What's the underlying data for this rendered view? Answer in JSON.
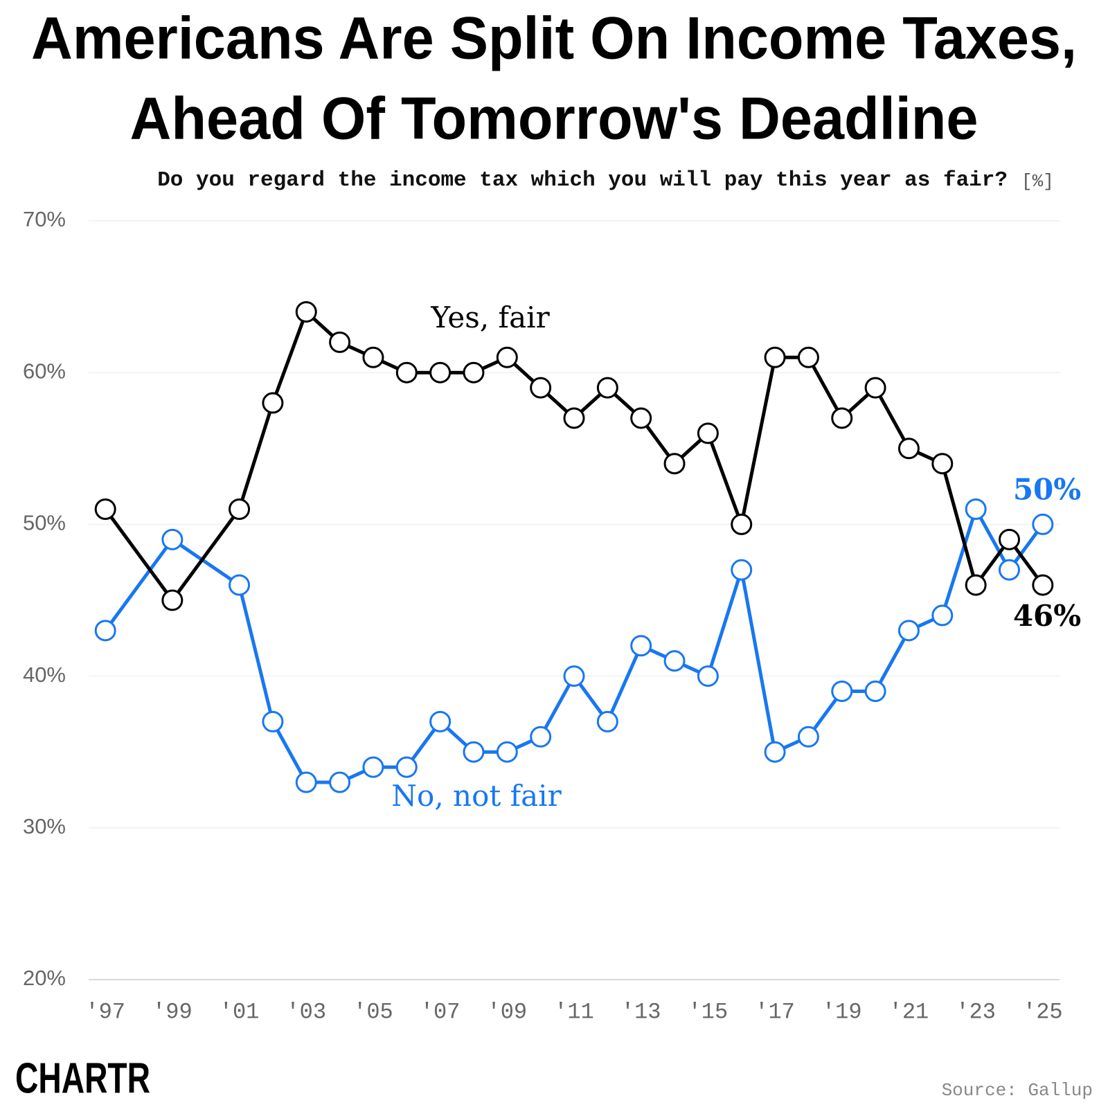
{
  "chart_data": {
    "type": "line",
    "title": [
      "Americans Are Split On Income Taxes,",
      "Ahead Of Tomorrow's Deadline"
    ],
    "subtitle": "Do you regard the income tax which you will pay this year as fair?",
    "unit": "[%]",
    "x": [
      1997,
      1999,
      2001,
      2002,
      2003,
      2004,
      2005,
      2006,
      2007,
      2008,
      2009,
      2010,
      2011,
      2012,
      2013,
      2014,
      2015,
      2016,
      2017,
      2018,
      2019,
      2020,
      2021,
      2022,
      2023,
      2024,
      2025
    ],
    "series": [
      {
        "name": "Yes, fair",
        "color": "#000000",
        "values": [
          51,
          45,
          51,
          58,
          64,
          62,
          61,
          60,
          60,
          60,
          61,
          59,
          57,
          59,
          57,
          54,
          56,
          50,
          61,
          61,
          57,
          59,
          55,
          54,
          46,
          49,
          46
        ],
        "value_labels": [
          null,
          null,
          null,
          null,
          null,
          null,
          null,
          null,
          null,
          null,
          null,
          null,
          null,
          null,
          null,
          null,
          null,
          null,
          null,
          null,
          null,
          null,
          null,
          null,
          null,
          null,
          "46%"
        ]
      },
      {
        "name": "No, not fair",
        "color": "#1877f2",
        "values": [
          43,
          49,
          46,
          37,
          33,
          33,
          34,
          34,
          37,
          35,
          35,
          36,
          40,
          37,
          42,
          41,
          40,
          47,
          35,
          36,
          39,
          39,
          43,
          44,
          51,
          47,
          50
        ],
        "value_labels": [
          null,
          null,
          null,
          null,
          null,
          null,
          null,
          null,
          null,
          null,
          null,
          null,
          null,
          null,
          null,
          null,
          null,
          null,
          null,
          null,
          null,
          null,
          null,
          null,
          null,
          null,
          "50%"
        ]
      }
    ],
    "xlim": [
      1996.5,
      2025.5
    ],
    "xticks": [
      {
        "value": 1997,
        "label": "'97"
      },
      {
        "value": 1999,
        "label": "'99"
      },
      {
        "value": 2001,
        "label": "'01"
      },
      {
        "value": 2003,
        "label": "'03"
      },
      {
        "value": 2005,
        "label": "'05"
      },
      {
        "value": 2007,
        "label": "'07"
      },
      {
        "value": 2009,
        "label": "'09"
      },
      {
        "value": 2011,
        "label": "'11"
      },
      {
        "value": 2013,
        "label": "'13"
      },
      {
        "value": 2015,
        "label": "'15"
      },
      {
        "value": 2017,
        "label": "'17"
      },
      {
        "value": 2019,
        "label": "'19"
      },
      {
        "value": 2021,
        "label": "'21"
      },
      {
        "value": 2023,
        "label": "'23"
      },
      {
        "value": 2025,
        "label": "'25"
      }
    ],
    "ylim": [
      20,
      70
    ],
    "yticks": [
      {
        "value": 20,
        "label": "20%"
      },
      {
        "value": 30,
        "label": "30%"
      },
      {
        "value": 40,
        "label": "40%"
      },
      {
        "value": 50,
        "label": "50%"
      },
      {
        "value": 60,
        "label": "60%"
      },
      {
        "value": 70,
        "label": "70%"
      }
    ],
    "grid": true,
    "source": "Source: Gallup",
    "logo": "CHARTR"
  }
}
